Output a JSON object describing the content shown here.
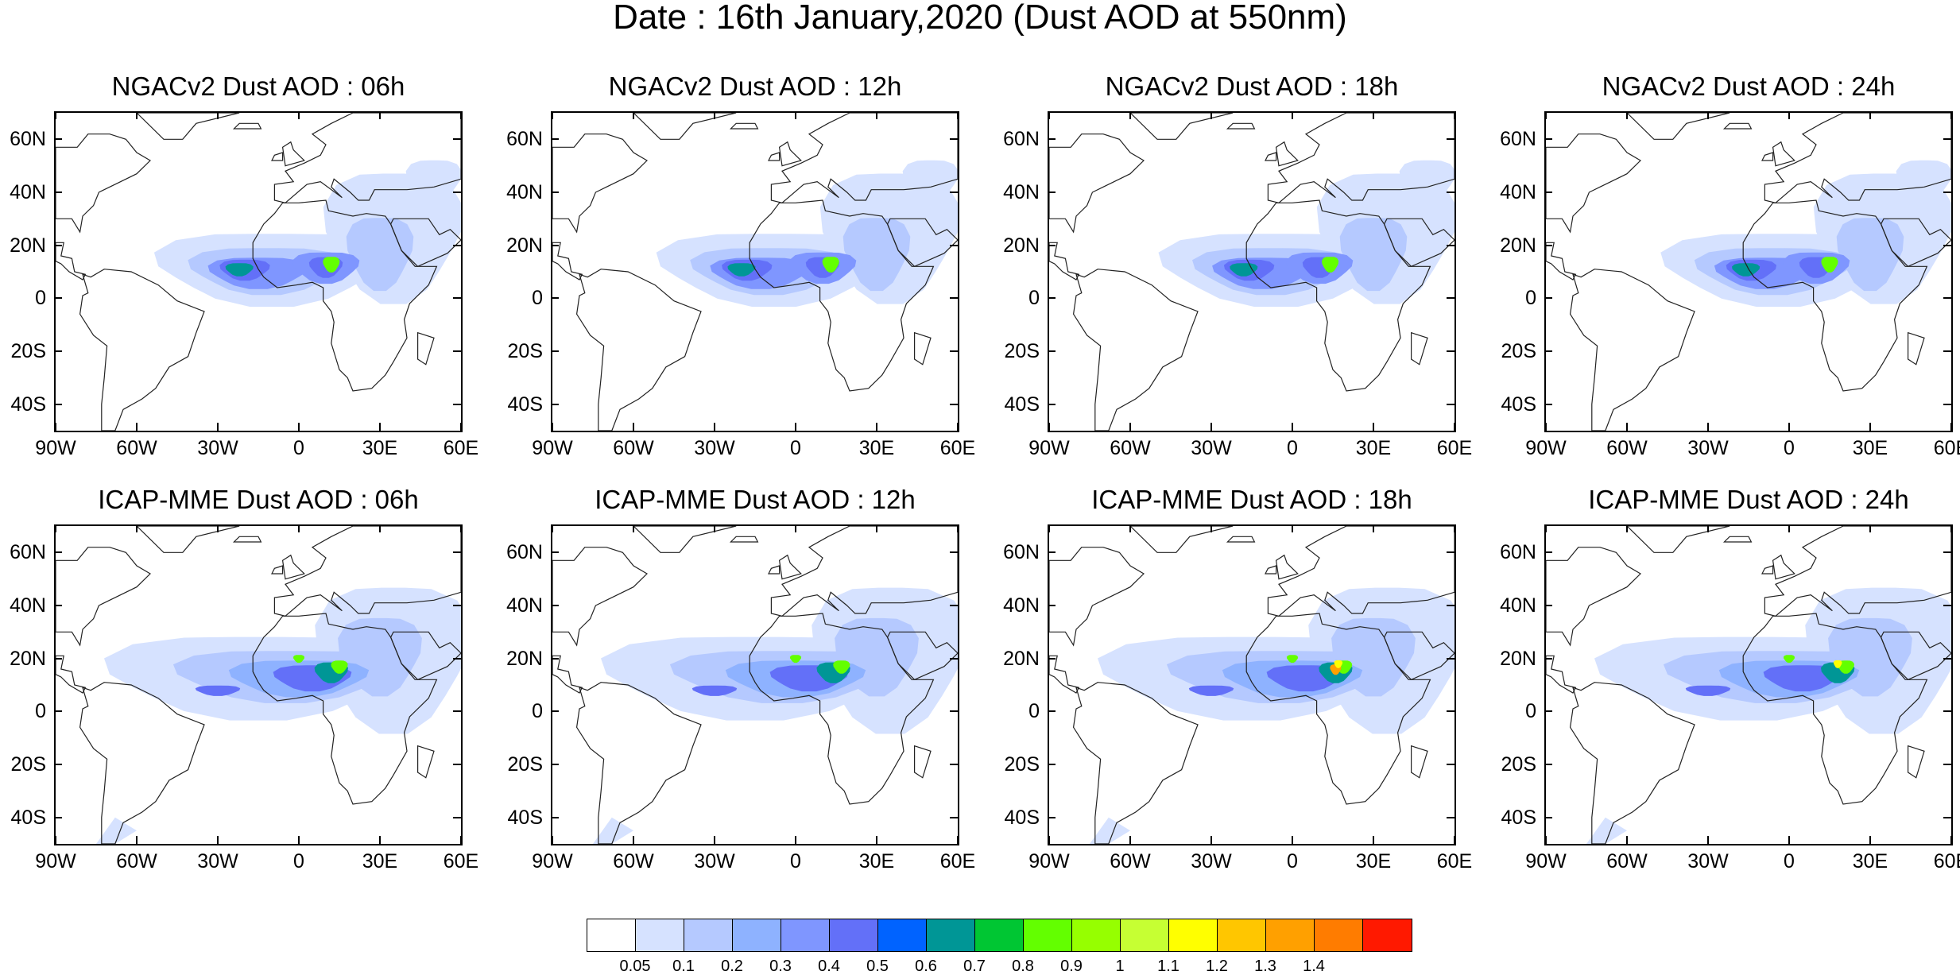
{
  "title": "Date : 16th January,2020 (Dust AOD at 550nm)",
  "panels": [
    {
      "title": "NGACv2 Dust AOD : 06h",
      "model": "NGACv2",
      "lead": "06h"
    },
    {
      "title": "NGACv2 Dust AOD : 12h",
      "model": "NGACv2",
      "lead": "12h"
    },
    {
      "title": "NGACv2 Dust AOD : 18h",
      "model": "NGACv2",
      "lead": "18h"
    },
    {
      "title": "NGACv2 Dust AOD : 24h",
      "model": "NGACv2",
      "lead": "24h"
    },
    {
      "title": "ICAP-MME Dust AOD : 06h",
      "model": "ICAP-MME",
      "lead": "06h"
    },
    {
      "title": "ICAP-MME Dust AOD : 12h",
      "model": "ICAP-MME",
      "lead": "12h"
    },
    {
      "title": "ICAP-MME Dust AOD : 18h",
      "model": "ICAP-MME",
      "lead": "18h"
    },
    {
      "title": "ICAP-MME Dust AOD : 24h",
      "model": "ICAP-MME",
      "lead": "24h"
    }
  ],
  "axes": {
    "lat_labels": [
      "60N",
      "40N",
      "20N",
      "0",
      "20S",
      "40S"
    ],
    "lon_labels": [
      "90W",
      "60W",
      "30W",
      "0",
      "30E",
      "60E"
    ],
    "lat_range": [
      -50,
      70
    ],
    "lon_range": [
      -90,
      60
    ]
  },
  "colorbar": {
    "colors": [
      "#ffffff",
      "#d6e2ff",
      "#b5c9ff",
      "#8eb2ff",
      "#7f96ff",
      "#6370f8",
      "#0063ff",
      "#009696",
      "#00c633",
      "#63ff00",
      "#96ff00",
      "#c6ff33",
      "#ffff00",
      "#ffc600",
      "#ffa000",
      "#ff7c00",
      "#ff1900"
    ],
    "labels": [
      "0.05",
      "0.1",
      "0.2",
      "0.3",
      "0.4",
      "0.5",
      "0.6",
      "0.7",
      "0.8",
      "0.9",
      "1",
      "1.1",
      "1.2",
      "1.3",
      "1.4"
    ]
  }
}
